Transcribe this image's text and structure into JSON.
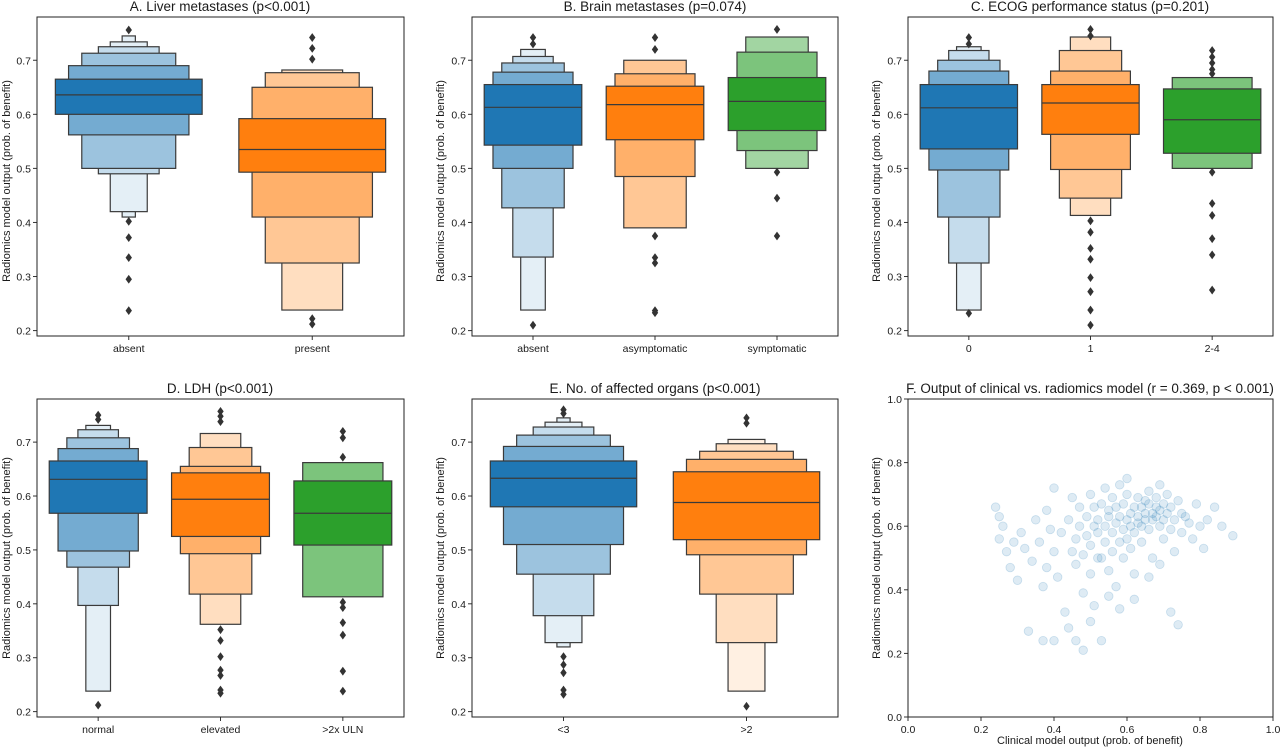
{
  "figure": {
    "background": "#ffffff"
  },
  "palette": {
    "blue": "#1f77b4",
    "orange": "#ff7f0e",
    "green": "#2ca02c",
    "outlier": "#333333"
  },
  "chart_data": [
    {
      "type": "boxen",
      "title": "A. Liver metastases (p<0.001)",
      "ylabel": "Radiomics model output (prob. of benefit)",
      "ylim": [
        0.19,
        0.78
      ],
      "yticks": [
        0.2,
        0.3,
        0.4,
        0.5,
        0.6,
        0.7
      ],
      "ytick_labels": [
        "0.2",
        "0.3",
        "0.4",
        "0.5",
        "0.6",
        "0.7"
      ],
      "categories": [
        "absent",
        "present"
      ],
      "groups": [
        {
          "color": "#1f77b4",
          "median": 0.636,
          "levels": [
            [
              0.6,
              0.665
            ],
            [
              0.562,
              0.69
            ],
            [
              0.5,
              0.713
            ],
            [
              0.49,
              0.725
            ],
            [
              0.42,
              0.734
            ],
            [
              0.41,
              0.745
            ]
          ],
          "outliers": [
            0.756,
            0.402,
            0.372,
            0.335,
            0.295,
            0.237
          ]
        },
        {
          "color": "#ff7f0e",
          "median": 0.535,
          "levels": [
            [
              0.493,
              0.592
            ],
            [
              0.41,
              0.65
            ],
            [
              0.325,
              0.677
            ],
            [
              0.238,
              0.682
            ]
          ],
          "outliers": [
            0.742,
            0.722,
            0.702,
            0.222,
            0.212
          ]
        }
      ]
    },
    {
      "type": "boxen",
      "title": "B. Brain metastases (p=0.074)",
      "ylabel": "Radiomics model output (prob. of benefit)",
      "ylim": [
        0.19,
        0.78
      ],
      "yticks": [
        0.2,
        0.3,
        0.4,
        0.5,
        0.6,
        0.7
      ],
      "ytick_labels": [
        "0.2",
        "0.3",
        "0.4",
        "0.5",
        "0.6",
        "0.7"
      ],
      "categories": [
        "absent",
        "asymptomatic",
        "symptomatic"
      ],
      "groups": [
        {
          "color": "#1f77b4",
          "median": 0.613,
          "levels": [
            [
              0.543,
              0.655
            ],
            [
              0.5,
              0.678
            ],
            [
              0.427,
              0.695
            ],
            [
              0.336,
              0.707
            ],
            [
              0.238,
              0.72
            ]
          ],
          "outliers": [
            0.742,
            0.73,
            0.21
          ]
        },
        {
          "color": "#ff7f0e",
          "median": 0.618,
          "levels": [
            [
              0.553,
              0.652
            ],
            [
              0.485,
              0.675
            ],
            [
              0.39,
              0.7
            ]
          ],
          "outliers": [
            0.742,
            0.72,
            0.375,
            0.335,
            0.325,
            0.237,
            0.233
          ]
        },
        {
          "color": "#2ca02c",
          "median": 0.624,
          "levels": [
            [
              0.57,
              0.668
            ],
            [
              0.533,
              0.715
            ],
            [
              0.5,
              0.743
            ]
          ],
          "outliers": [
            0.757,
            0.493,
            0.445,
            0.375
          ]
        }
      ]
    },
    {
      "type": "boxen",
      "title": "C. ECOG performance status (p=0.201)",
      "ylabel": "Radiomics model output (prob. of benefit)",
      "ylim": [
        0.19,
        0.78
      ],
      "yticks": [
        0.2,
        0.3,
        0.4,
        0.5,
        0.6,
        0.7
      ],
      "ytick_labels": [
        "0.2",
        "0.3",
        "0.4",
        "0.5",
        "0.6",
        "0.7"
      ],
      "categories": [
        "0",
        "1",
        "2-4"
      ],
      "groups": [
        {
          "color": "#1f77b4",
          "median": 0.612,
          "levels": [
            [
              0.536,
              0.655
            ],
            [
              0.497,
              0.68
            ],
            [
              0.41,
              0.7
            ],
            [
              0.325,
              0.718
            ],
            [
              0.238,
              0.725
            ]
          ],
          "outliers": [
            0.742,
            0.73,
            0.232
          ]
        },
        {
          "color": "#ff7f0e",
          "median": 0.621,
          "levels": [
            [
              0.563,
              0.655
            ],
            [
              0.498,
              0.68
            ],
            [
              0.445,
              0.718
            ],
            [
              0.413,
              0.743
            ]
          ],
          "outliers": [
            0.757,
            0.745,
            0.403,
            0.382,
            0.352,
            0.332,
            0.298,
            0.272,
            0.238,
            0.21
          ]
        },
        {
          "color": "#2ca02c",
          "median": 0.59,
          "levels": [
            [
              0.528,
              0.647
            ],
            [
              0.5,
              0.668
            ]
          ],
          "outliers": [
            0.718,
            0.706,
            0.695,
            0.683,
            0.675,
            0.493,
            0.435,
            0.413,
            0.37,
            0.34,
            0.275
          ]
        }
      ]
    },
    {
      "type": "boxen",
      "title": "D. LDH (p<0.001)",
      "ylabel": "Radiomics model output (prob. of benefit)",
      "ylim": [
        0.19,
        0.78
      ],
      "yticks": [
        0.2,
        0.3,
        0.4,
        0.5,
        0.6,
        0.7
      ],
      "ytick_labels": [
        "0.2",
        "0.3",
        "0.4",
        "0.5",
        "0.6",
        "0.7"
      ],
      "categories": [
        "normal",
        "elevated",
        ">2x ULN"
      ],
      "groups": [
        {
          "color": "#1f77b4",
          "median": 0.631,
          "levels": [
            [
              0.568,
              0.665
            ],
            [
              0.498,
              0.688
            ],
            [
              0.468,
              0.708
            ],
            [
              0.397,
              0.723
            ],
            [
              0.238,
              0.731
            ]
          ],
          "outliers": [
            0.75,
            0.742,
            0.212
          ]
        },
        {
          "color": "#ff7f0e",
          "median": 0.594,
          "levels": [
            [
              0.525,
              0.643
            ],
            [
              0.493,
              0.655
            ],
            [
              0.418,
              0.69
            ],
            [
              0.362,
              0.716
            ]
          ],
          "outliers": [
            0.757,
            0.748,
            0.738,
            0.352,
            0.332,
            0.302,
            0.277,
            0.267,
            0.24,
            0.234
          ]
        },
        {
          "color": "#2ca02c",
          "median": 0.568,
          "levels": [
            [
              0.509,
              0.628
            ],
            [
              0.413,
              0.662
            ]
          ],
          "outliers": [
            0.72,
            0.708,
            0.672,
            0.403,
            0.393,
            0.365,
            0.342,
            0.275,
            0.238
          ]
        }
      ]
    },
    {
      "type": "boxen",
      "title": "E. No. of affected organs (p<0.001)",
      "ylabel": "Radiomics model output (prob. of benefit)",
      "ylim": [
        0.19,
        0.78
      ],
      "yticks": [
        0.2,
        0.3,
        0.4,
        0.5,
        0.6,
        0.7
      ],
      "ytick_labels": [
        "0.2",
        "0.3",
        "0.4",
        "0.5",
        "0.6",
        "0.7"
      ],
      "categories": [
        "<3",
        ">2"
      ],
      "groups": [
        {
          "color": "#1f77b4",
          "median": 0.633,
          "levels": [
            [
              0.58,
              0.665
            ],
            [
              0.51,
              0.692
            ],
            [
              0.455,
              0.713
            ],
            [
              0.378,
              0.728
            ],
            [
              0.328,
              0.737
            ],
            [
              0.32,
              0.745
            ]
          ],
          "outliers": [
            0.76,
            0.753,
            0.302,
            0.287,
            0.272,
            0.24,
            0.232
          ]
        },
        {
          "color": "#ff7f0e",
          "median": 0.588,
          "levels": [
            [
              0.519,
              0.645
            ],
            [
              0.491,
              0.668
            ],
            [
              0.418,
              0.683
            ],
            [
              0.328,
              0.697
            ],
            [
              0.238,
              0.705
            ]
          ],
          "outliers": [
            0.745,
            0.735,
            0.21
          ]
        }
      ]
    },
    {
      "type": "scatter",
      "title": "F. Output of clinical vs. radiomics model (r = 0.369, p < 0.001)",
      "xlabel": "Clinical model output (prob. of benefit)",
      "ylabel": "Radiomics model output (prob. of benefit)",
      "xlim": [
        0.0,
        1.0
      ],
      "ylim": [
        0.0,
        1.0
      ],
      "xticks": [
        0.0,
        0.2,
        0.4,
        0.6,
        0.8,
        1.0
      ],
      "xtick_labels": [
        "0.0",
        "0.2",
        "0.4",
        "0.6",
        "0.8",
        "1.0"
      ],
      "yticks": [
        0.0,
        0.2,
        0.4,
        0.6,
        0.8,
        1.0
      ],
      "ytick_labels": [
        "0.0",
        "0.2",
        "0.4",
        "0.6",
        "0.8",
        "1.0"
      ],
      "color": "#1f77b4",
      "alpha": 0.15,
      "points": [
        [
          0.24,
          0.66
        ],
        [
          0.25,
          0.63
        ],
        [
          0.26,
          0.6
        ],
        [
          0.25,
          0.56
        ],
        [
          0.27,
          0.52
        ],
        [
          0.28,
          0.47
        ],
        [
          0.29,
          0.55
        ],
        [
          0.3,
          0.43
        ],
        [
          0.31,
          0.58
        ],
        [
          0.32,
          0.53
        ],
        [
          0.33,
          0.27
        ],
        [
          0.34,
          0.49
        ],
        [
          0.35,
          0.62
        ],
        [
          0.36,
          0.55
        ],
        [
          0.37,
          0.41
        ],
        [
          0.38,
          0.47
        ],
        [
          0.38,
          0.65
        ],
        [
          0.39,
          0.59
        ],
        [
          0.4,
          0.52
        ],
        [
          0.4,
          0.72
        ],
        [
          0.41,
          0.44
        ],
        [
          0.42,
          0.58
        ],
        [
          0.43,
          0.33
        ],
        [
          0.44,
          0.62
        ],
        [
          0.45,
          0.52
        ],
        [
          0.45,
          0.69
        ],
        [
          0.46,
          0.56
        ],
        [
          0.46,
          0.48
        ],
        [
          0.46,
          0.24
        ],
        [
          0.47,
          0.6
        ],
        [
          0.47,
          0.66
        ],
        [
          0.48,
          0.51
        ],
        [
          0.48,
          0.39
        ],
        [
          0.48,
          0.21
        ],
        [
          0.49,
          0.57
        ],
        [
          0.49,
          0.63
        ],
        [
          0.5,
          0.54
        ],
        [
          0.5,
          0.7
        ],
        [
          0.5,
          0.45
        ],
        [
          0.51,
          0.6
        ],
        [
          0.51,
          0.66
        ],
        [
          0.51,
          0.35
        ],
        [
          0.52,
          0.5
        ],
        [
          0.52,
          0.58
        ],
        [
          0.52,
          0.62
        ],
        [
          0.53,
          0.5
        ],
        [
          0.53,
          0.24
        ],
        [
          0.53,
          0.67
        ],
        [
          0.54,
          0.55
        ],
        [
          0.54,
          0.6
        ],
        [
          0.54,
          0.72
        ],
        [
          0.55,
          0.46
        ],
        [
          0.55,
          0.63
        ],
        [
          0.55,
          0.65
        ],
        [
          0.56,
          0.52
        ],
        [
          0.56,
          0.58
        ],
        [
          0.56,
          0.69
        ],
        [
          0.57,
          0.61
        ],
        [
          0.57,
          0.66
        ],
        [
          0.57,
          0.41
        ],
        [
          0.58,
          0.55
        ],
        [
          0.58,
          0.63
        ],
        [
          0.58,
          0.73
        ],
        [
          0.59,
          0.59
        ],
        [
          0.59,
          0.67
        ],
        [
          0.59,
          0.5
        ],
        [
          0.6,
          0.62
        ],
        [
          0.6,
          0.56
        ],
        [
          0.6,
          0.7
        ],
        [
          0.6,
          0.75
        ],
        [
          0.61,
          0.64
        ],
        [
          0.61,
          0.6
        ],
        [
          0.61,
          0.53
        ],
        [
          0.62,
          0.66
        ],
        [
          0.62,
          0.58
        ],
        [
          0.62,
          0.45
        ],
        [
          0.63,
          0.63
        ],
        [
          0.63,
          0.69
        ],
        [
          0.63,
          0.61
        ],
        [
          0.64,
          0.6
        ],
        [
          0.64,
          0.66
        ],
        [
          0.64,
          0.55
        ],
        [
          0.65,
          0.64
        ],
        [
          0.65,
          0.68
        ],
        [
          0.65,
          0.62
        ],
        [
          0.66,
          0.59
        ],
        [
          0.66,
          0.67
        ],
        [
          0.66,
          0.71
        ],
        [
          0.67,
          0.64
        ],
        [
          0.67,
          0.62
        ],
        [
          0.67,
          0.5
        ],
        [
          0.68,
          0.66
        ],
        [
          0.68,
          0.63
        ],
        [
          0.68,
          0.69
        ],
        [
          0.69,
          0.6
        ],
        [
          0.69,
          0.65
        ],
        [
          0.69,
          0.73
        ],
        [
          0.7,
          0.62
        ],
        [
          0.7,
          0.67
        ],
        [
          0.7,
          0.56
        ],
        [
          0.71,
          0.64
        ],
        [
          0.71,
          0.7
        ],
        [
          0.72,
          0.59
        ],
        [
          0.72,
          0.66
        ],
        [
          0.73,
          0.62
        ],
        [
          0.73,
          0.52
        ],
        [
          0.74,
          0.68
        ],
        [
          0.75,
          0.58
        ],
        [
          0.75,
          0.64
        ],
        [
          0.76,
          0.63
        ],
        [
          0.77,
          0.61
        ],
        [
          0.78,
          0.56
        ],
        [
          0.79,
          0.67
        ],
        [
          0.8,
          0.6
        ],
        [
          0.81,
          0.53
        ],
        [
          0.82,
          0.62
        ],
        [
          0.84,
          0.66
        ],
        [
          0.86,
          0.6
        ],
        [
          0.89,
          0.57
        ],
        [
          0.72,
          0.33
        ],
        [
          0.74,
          0.29
        ],
        [
          0.62,
          0.37
        ],
        [
          0.58,
          0.34
        ],
        [
          0.4,
          0.24
        ],
        [
          0.37,
          0.24
        ],
        [
          0.44,
          0.28
        ],
        [
          0.5,
          0.3
        ],
        [
          0.55,
          0.38
        ],
        [
          0.66,
          0.44
        ],
        [
          0.69,
          0.48
        ]
      ]
    }
  ]
}
